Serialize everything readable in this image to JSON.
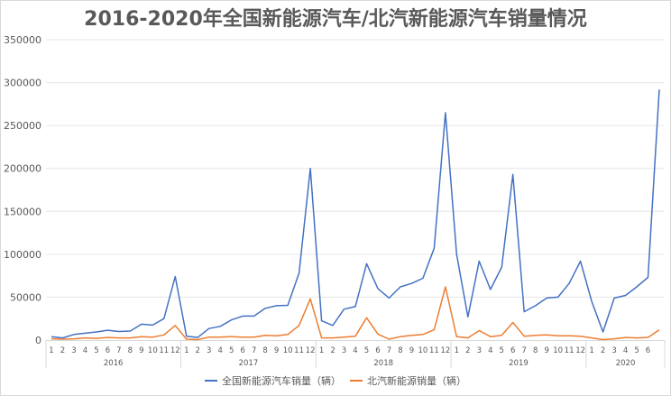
{
  "chart_data": {
    "type": "line",
    "title": "2016-2020年全国新能源汽车/北汽新能源汽车销量情况",
    "xlabel": "",
    "ylabel": "",
    "ylim": [
      0,
      350000
    ],
    "y_ticks": [
      "0",
      "50000",
      "100000",
      "150000",
      "200000",
      "250000",
      "300000",
      "350000"
    ],
    "grid": true,
    "legend_position": "bottom",
    "x_groups": [
      {
        "label": "2016",
        "months": [
          "1",
          "2",
          "3",
          "4",
          "5",
          "6",
          "7",
          "8",
          "9",
          "10",
          "11",
          "12"
        ]
      },
      {
        "label": "2017",
        "months": [
          "1",
          "2",
          "3",
          "4",
          "5",
          "6",
          "7",
          "8",
          "9",
          "10",
          "11",
          "12"
        ]
      },
      {
        "label": "2018",
        "months": [
          "1",
          "2",
          "3",
          "4",
          "5",
          "6",
          "7",
          "8",
          "9",
          "10",
          "11",
          "12"
        ]
      },
      {
        "label": "2019",
        "months": [
          "1",
          "2",
          "3",
          "4",
          "5",
          "6",
          "7",
          "8",
          "9",
          "10",
          "11",
          "12"
        ]
      },
      {
        "label": "2020",
        "months": [
          "1",
          "2",
          "3",
          "4",
          "5",
          "6",
          ""
        ]
      }
    ],
    "series": [
      {
        "name": "全国新能源汽车销量（辆）",
        "color": "#4472C4",
        "values": [
          4000,
          2500,
          6500,
          8000,
          9500,
          11500,
          10000,
          10500,
          18500,
          17500,
          25000,
          74000,
          4500,
          3000,
          13500,
          16000,
          23500,
          28000,
          28000,
          37000,
          40000,
          40500,
          78000,
          200000,
          22500,
          17000,
          36000,
          39000,
          89000,
          60000,
          49000,
          62000,
          66000,
          72000,
          107000,
          265000,
          100000,
          27000,
          92000,
          59000,
          85000,
          193000,
          33000,
          40000,
          49000,
          50000,
          66000,
          92000,
          45000,
          9500,
          49000,
          52000,
          62000,
          73000,
          292000
        ]
      },
      {
        "name": "北汽新能源销量（辆）",
        "color": "#ED7D31",
        "values": [
          1500,
          1000,
          1500,
          2500,
          2000,
          3000,
          2500,
          2500,
          4000,
          3500,
          6000,
          17000,
          1000,
          500,
          3500,
          3500,
          4000,
          3500,
          3500,
          5500,
          5000,
          6500,
          17000,
          48000,
          2500,
          2500,
          3500,
          4500,
          26000,
          7000,
          1000,
          4000,
          5500,
          6500,
          12000,
          62000,
          4000,
          2500,
          11000,
          4000,
          5500,
          20500,
          4500,
          5500,
          6000,
          5000,
          5000,
          4500,
          2500,
          500,
          1500,
          3000,
          2500,
          3000,
          12000
        ]
      }
    ]
  }
}
